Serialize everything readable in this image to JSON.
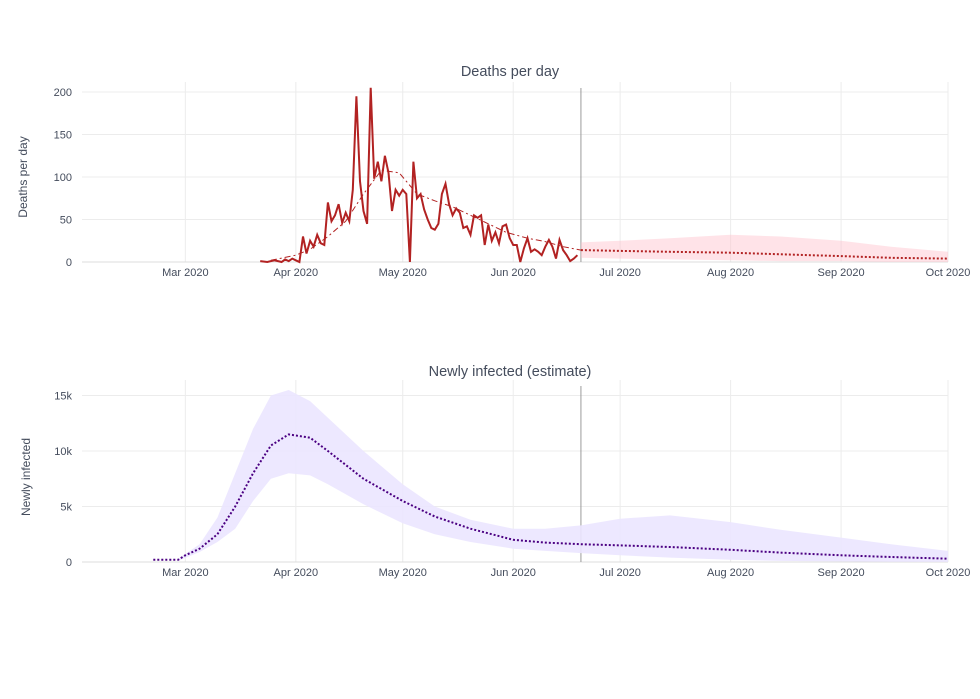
{
  "chart_data": [
    {
      "type": "line",
      "title": "Deaths per day",
      "xlabel": "",
      "ylabel": "Deaths per day",
      "xlim": [
        "2020-02-01",
        "2020-10-01"
      ],
      "ylim": [
        0,
        200
      ],
      "x_ticks": [
        "Mar 2020",
        "Apr 2020",
        "May 2020",
        "Jun 2020",
        "Jul 2020",
        "Aug 2020",
        "Sep 2020",
        "Oct 2020"
      ],
      "y_ticks": [
        "0",
        "50",
        "100",
        "150",
        "200"
      ],
      "forecast_start": "2020-06-20",
      "colors": {
        "observed": "#b22222",
        "forecast": "#b22222",
        "band": "#ffc0cb"
      },
      "series": [
        {
          "style": "solid",
          "x": [
            "2020-03-22",
            "2020-03-24",
            "2020-03-26",
            "2020-03-27",
            "2020-03-28",
            "2020-03-29",
            "2020-03-30",
            "2020-03-31",
            "2020-04-01",
            "2020-04-02",
            "2020-04-03",
            "2020-04-04",
            "2020-04-05",
            "2020-04-06",
            "2020-04-07",
            "2020-04-08",
            "2020-04-09",
            "2020-04-10",
            "2020-04-11",
            "2020-04-12",
            "2020-04-13",
            "2020-04-14",
            "2020-04-15",
            "2020-04-16",
            "2020-04-17",
            "2020-04-18",
            "2020-04-19",
            "2020-04-20",
            "2020-04-21",
            "2020-04-22",
            "2020-04-23",
            "2020-04-24",
            "2020-04-25",
            "2020-04-26",
            "2020-04-27",
            "2020-04-28",
            "2020-04-29",
            "2020-04-30",
            "2020-05-01",
            "2020-05-02",
            "2020-05-03",
            "2020-05-04",
            "2020-05-05",
            "2020-05-06",
            "2020-05-07",
            "2020-05-08",
            "2020-05-09",
            "2020-05-10",
            "2020-05-11",
            "2020-05-12",
            "2020-05-13",
            "2020-05-14",
            "2020-05-15",
            "2020-05-16",
            "2020-05-17",
            "2020-05-18",
            "2020-05-19",
            "2020-05-20",
            "2020-05-21",
            "2020-05-22",
            "2020-05-23",
            "2020-05-24",
            "2020-05-25",
            "2020-05-26",
            "2020-05-27",
            "2020-05-28",
            "2020-05-29",
            "2020-05-30",
            "2020-05-31",
            "2020-06-01",
            "2020-06-02",
            "2020-06-03",
            "2020-06-04",
            "2020-06-05",
            "2020-06-06",
            "2020-06-07",
            "2020-06-08",
            "2020-06-09",
            "2020-06-10",
            "2020-06-11",
            "2020-06-12",
            "2020-06-13",
            "2020-06-14",
            "2020-06-15",
            "2020-06-16",
            "2020-06-17",
            "2020-06-18",
            "2020-06-19"
          ],
          "y": [
            1,
            0,
            2,
            1,
            0,
            3,
            1,
            4,
            2,
            0,
            30,
            10,
            25,
            18,
            32,
            22,
            20,
            70,
            48,
            55,
            68,
            46,
            58,
            48,
            85,
            195,
            95,
            60,
            45,
            205,
            98,
            118,
            95,
            125,
            105,
            60,
            85,
            78,
            85,
            80,
            0,
            118,
            75,
            80,
            62,
            50,
            40,
            38,
            45,
            80,
            92,
            68,
            55,
            63,
            58,
            40,
            42,
            32,
            55,
            52,
            55,
            20,
            44,
            25,
            35,
            22,
            42,
            44,
            28,
            20,
            20,
            0,
            16,
            28,
            12,
            15,
            12,
            8,
            18,
            26,
            18,
            4,
            26,
            14,
            8,
            1,
            4,
            8
          ]
        },
        {
          "style": "dashdot",
          "x": [
            "2020-03-25",
            "2020-04-01",
            "2020-04-05",
            "2020-04-10",
            "2020-04-15",
            "2020-04-20",
            "2020-04-25",
            "2020-04-30",
            "2020-05-05",
            "2020-05-10",
            "2020-05-15",
            "2020-05-20",
            "2020-05-25",
            "2020-05-30",
            "2020-06-05",
            "2020-06-10",
            "2020-06-15",
            "2020-06-20"
          ],
          "y": [
            2,
            8,
            15,
            30,
            48,
            80,
            108,
            105,
            80,
            72,
            65,
            55,
            45,
            35,
            28,
            24,
            18,
            14
          ]
        },
        {
          "style": "dotted",
          "x": [
            "2020-06-20",
            "2020-07-01",
            "2020-07-15",
            "2020-08-01",
            "2020-08-15",
            "2020-09-01",
            "2020-09-15",
            "2020-10-01"
          ],
          "y": [
            14,
            13,
            12,
            11,
            9,
            7,
            5,
            4
          ]
        }
      ],
      "band": {
        "x": [
          "2020-06-20",
          "2020-07-01",
          "2020-07-15",
          "2020-08-01",
          "2020-08-15",
          "2020-09-01",
          "2020-09-15",
          "2020-10-01"
        ],
        "upper": [
          23,
          25,
          28,
          32,
          30,
          25,
          18,
          12
        ],
        "lower": [
          5,
          4,
          3,
          2,
          1,
          1,
          0,
          0
        ]
      }
    },
    {
      "type": "line",
      "title": "Newly infected (estimate)",
      "xlabel": "",
      "ylabel": "Newly infected",
      "xlim": [
        "2020-02-01",
        "2020-10-01"
      ],
      "ylim": [
        0,
        15500
      ],
      "x_ticks": [
        "Mar 2020",
        "Apr 2020",
        "May 2020",
        "Jun 2020",
        "Jul 2020",
        "Aug 2020",
        "Sep 2020",
        "Oct 2020"
      ],
      "y_ticks": [
        "0",
        "5k",
        "10k",
        "15k"
      ],
      "forecast_start": "2020-06-20",
      "colors": {
        "line": "#4b0082",
        "band": "#ebe6ff"
      },
      "series": [
        {
          "style": "dotted",
          "x": [
            "2020-02-21",
            "2020-02-28",
            "2020-03-01",
            "2020-03-05",
            "2020-03-10",
            "2020-03-15",
            "2020-03-20",
            "2020-03-25",
            "2020-03-30",
            "2020-04-05",
            "2020-04-10",
            "2020-04-20",
            "2020-05-01",
            "2020-05-10",
            "2020-05-20",
            "2020-06-01",
            "2020-06-10",
            "2020-06-20",
            "2020-07-01",
            "2020-07-15",
            "2020-08-01",
            "2020-08-15",
            "2020-09-01",
            "2020-09-15",
            "2020-10-01"
          ],
          "y": [
            200,
            200,
            600,
            1200,
            2500,
            5000,
            8000,
            10500,
            11500,
            11200,
            10000,
            7500,
            5500,
            4100,
            3000,
            2000,
            1750,
            1600,
            1500,
            1350,
            1100,
            850,
            600,
            450,
            300
          ]
        }
      ],
      "band": {
        "x": [
          "2020-02-28",
          "2020-03-05",
          "2020-03-10",
          "2020-03-15",
          "2020-03-20",
          "2020-03-25",
          "2020-03-30",
          "2020-04-05",
          "2020-04-10",
          "2020-04-20",
          "2020-05-01",
          "2020-05-10",
          "2020-05-20",
          "2020-06-01",
          "2020-06-10",
          "2020-06-20",
          "2020-07-01",
          "2020-07-15",
          "2020-08-01",
          "2020-08-15",
          "2020-09-01",
          "2020-09-15",
          "2020-10-01"
        ],
        "upper": [
          300,
          1600,
          4000,
          8000,
          12000,
          15000,
          15500,
          14500,
          13000,
          10000,
          7000,
          5000,
          3800,
          3000,
          3000,
          3300,
          3900,
          4200,
          3600,
          2900,
          2200,
          1600,
          1000
        ],
        "lower": [
          100,
          900,
          1800,
          3000,
          5500,
          7500,
          8000,
          7800,
          7000,
          5200,
          3500,
          2500,
          1800,
          1200,
          1000,
          800,
          600,
          400,
          200,
          100,
          50,
          20,
          10
        ]
      }
    }
  ]
}
